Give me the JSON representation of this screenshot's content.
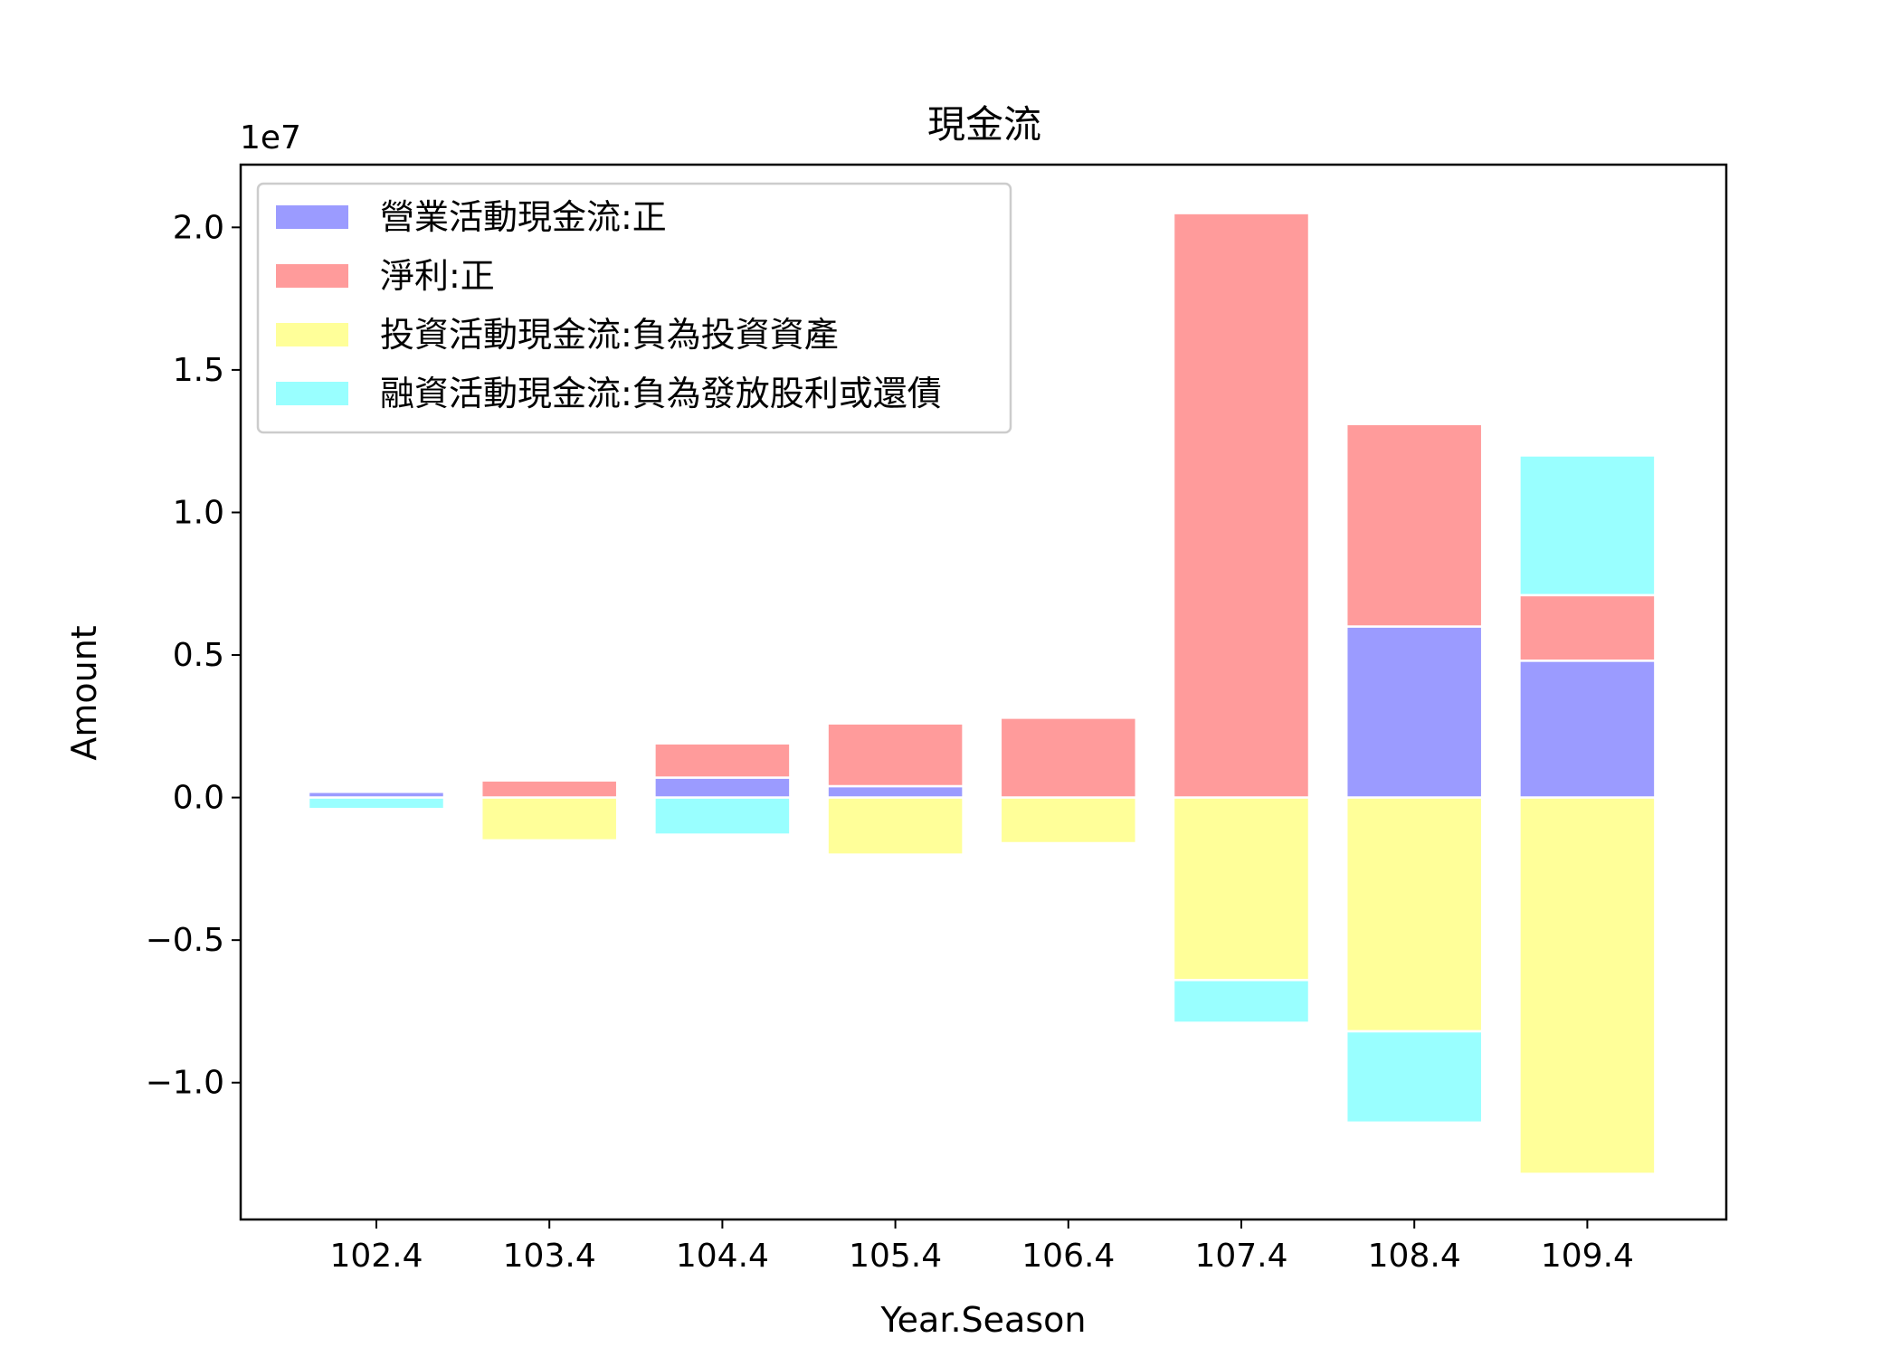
{
  "chart_data": {
    "type": "bar",
    "stacked": "diverging",
    "title": "現金流",
    "xlabel": "Year.Season",
    "ylabel": "Amount",
    "y_offset_text": "1e7",
    "categories": [
      "102.4",
      "103.4",
      "104.4",
      "105.4",
      "106.4",
      "107.4",
      "108.4",
      "109.4"
    ],
    "ylim": [
      -1.48,
      2.22
    ],
    "yticks": [
      -1.0,
      -0.5,
      0.0,
      0.5,
      1.0,
      1.5,
      2.0
    ],
    "ytick_labels": [
      "−1.0",
      "−0.5",
      "0.0",
      "0.5",
      "1.0",
      "1.5",
      "2.0"
    ],
    "series": [
      {
        "name": "營業活動現金流:正",
        "color": "#9b9bff",
        "values": [
          0.02,
          0.0,
          0.07,
          0.04,
          0.0,
          0.0,
          0.6,
          0.48
        ]
      },
      {
        "name": "淨利:正",
        "color": "#ff9b9b",
        "values": [
          0.0,
          0.06,
          0.12,
          0.22,
          0.28,
          2.05,
          0.71,
          0.23
        ]
      },
      {
        "name": "投資活動現金流:負為投資資產",
        "color": "#ffff99",
        "values": [
          0.0,
          -0.15,
          0.0,
          -0.2,
          -0.16,
          -0.64,
          -0.82,
          -1.32
        ]
      },
      {
        "name": "融資活動現金流:負為發放股利或還債",
        "color": "#99ffff",
        "values": [
          -0.04,
          0.0,
          -0.13,
          0.0,
          0.0,
          -0.15,
          -0.32,
          0.49
        ]
      }
    ],
    "legend_position": "upper-left",
    "grid": false
  }
}
